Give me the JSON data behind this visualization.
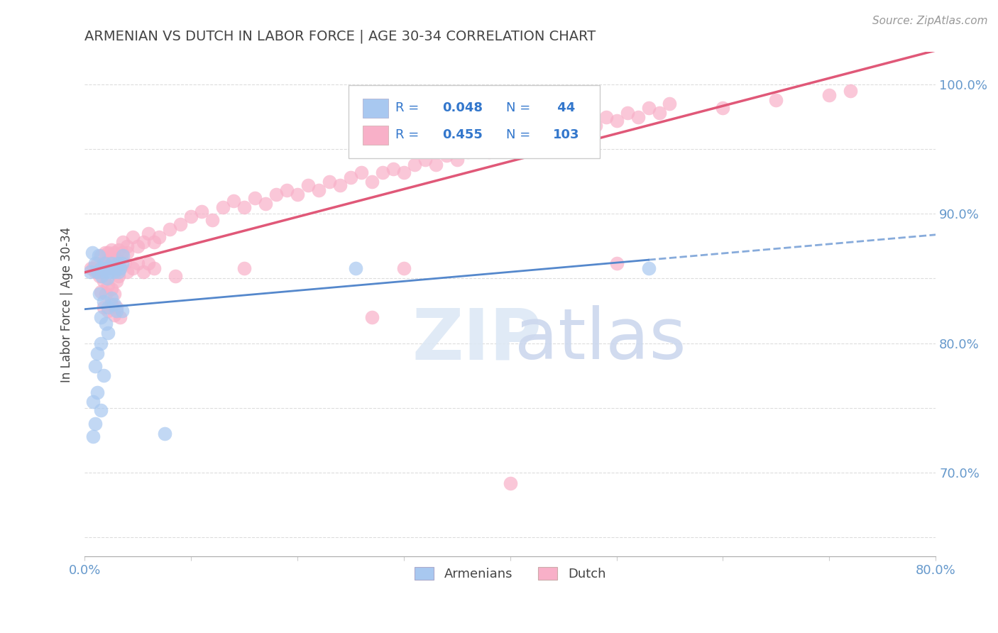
{
  "title": "ARMENIAN VS DUTCH IN LABOR FORCE | AGE 30-34 CORRELATION CHART",
  "source": "Source: ZipAtlas.com",
  "ylabel": "In Labor Force | Age 30-34",
  "xlim": [
    0.0,
    0.8
  ],
  "ylim": [
    0.635,
    1.025
  ],
  "xtick_positions": [
    0.0,
    0.1,
    0.2,
    0.3,
    0.4,
    0.5,
    0.6,
    0.7,
    0.8
  ],
  "xticklabels": [
    "0.0%",
    "",
    "",
    "",
    "",
    "",
    "",
    "",
    "80.0%"
  ],
  "ytick_positions": [
    0.65,
    0.7,
    0.75,
    0.8,
    0.85,
    0.9,
    0.95,
    1.0
  ],
  "ytick_labels_right": [
    "",
    "70.0%",
    "",
    "80.0%",
    "",
    "90.0%",
    "",
    "100.0%"
  ],
  "armenian_color": "#a8c8f0",
  "dutch_color": "#f8b0c8",
  "armenian_line_color": "#5588cc",
  "dutch_line_color": "#e05878",
  "title_color": "#444444",
  "axis_label_color": "#6699cc",
  "legend_r_color": "#3377cc",
  "background_color": "#ffffff",
  "watermark_zip_color": "#e8e8f8",
  "watermark_atlas_color": "#d8e8f8",
  "armenian_points": [
    [
      0.005,
      0.855
    ],
    [
      0.007,
      0.87
    ],
    [
      0.01,
      0.862
    ],
    [
      0.012,
      0.855
    ],
    [
      0.013,
      0.868
    ],
    [
      0.015,
      0.858
    ],
    [
      0.016,
      0.852
    ],
    [
      0.018,
      0.858
    ],
    [
      0.019,
      0.862
    ],
    [
      0.02,
      0.855
    ],
    [
      0.021,
      0.85
    ],
    [
      0.022,
      0.858
    ],
    [
      0.023,
      0.855
    ],
    [
      0.025,
      0.862
    ],
    [
      0.026,
      0.858
    ],
    [
      0.028,
      0.855
    ],
    [
      0.03,
      0.858
    ],
    [
      0.031,
      0.862
    ],
    [
      0.032,
      0.855
    ],
    [
      0.033,
      0.858
    ],
    [
      0.035,
      0.862
    ],
    [
      0.036,
      0.868
    ],
    [
      0.014,
      0.838
    ],
    [
      0.018,
      0.832
    ],
    [
      0.022,
      0.828
    ],
    [
      0.025,
      0.835
    ],
    [
      0.028,
      0.83
    ],
    [
      0.03,
      0.825
    ],
    [
      0.015,
      0.82
    ],
    [
      0.02,
      0.815
    ],
    [
      0.022,
      0.808
    ],
    [
      0.015,
      0.8
    ],
    [
      0.012,
      0.792
    ],
    [
      0.01,
      0.782
    ],
    [
      0.018,
      0.775
    ],
    [
      0.012,
      0.762
    ],
    [
      0.008,
      0.755
    ],
    [
      0.015,
      0.748
    ],
    [
      0.01,
      0.738
    ],
    [
      0.008,
      0.728
    ],
    [
      0.035,
      0.825
    ],
    [
      0.255,
      0.858
    ],
    [
      0.53,
      0.858
    ],
    [
      0.075,
      0.73
    ]
  ],
  "dutch_points": [
    [
      0.006,
      0.858
    ],
    [
      0.008,
      0.858
    ],
    [
      0.01,
      0.855
    ],
    [
      0.012,
      0.862
    ],
    [
      0.014,
      0.852
    ],
    [
      0.015,
      0.868
    ],
    [
      0.016,
      0.855
    ],
    [
      0.018,
      0.862
    ],
    [
      0.019,
      0.87
    ],
    [
      0.02,
      0.858
    ],
    [
      0.021,
      0.862
    ],
    [
      0.022,
      0.87
    ],
    [
      0.023,
      0.858
    ],
    [
      0.024,
      0.865
    ],
    [
      0.025,
      0.872
    ],
    [
      0.026,
      0.862
    ],
    [
      0.027,
      0.858
    ],
    [
      0.028,
      0.87
    ],
    [
      0.03,
      0.865
    ],
    [
      0.031,
      0.862
    ],
    [
      0.032,
      0.872
    ],
    [
      0.033,
      0.858
    ],
    [
      0.035,
      0.87
    ],
    [
      0.036,
      0.878
    ],
    [
      0.038,
      0.862
    ],
    [
      0.04,
      0.87
    ],
    [
      0.015,
      0.84
    ],
    [
      0.018,
      0.848
    ],
    [
      0.02,
      0.838
    ],
    [
      0.022,
      0.845
    ],
    [
      0.025,
      0.842
    ],
    [
      0.028,
      0.838
    ],
    [
      0.03,
      0.848
    ],
    [
      0.032,
      0.852
    ],
    [
      0.018,
      0.828
    ],
    [
      0.022,
      0.825
    ],
    [
      0.025,
      0.83
    ],
    [
      0.028,
      0.822
    ],
    [
      0.03,
      0.828
    ],
    [
      0.033,
      0.82
    ],
    [
      0.04,
      0.875
    ],
    [
      0.045,
      0.882
    ],
    [
      0.05,
      0.875
    ],
    [
      0.055,
      0.878
    ],
    [
      0.06,
      0.885
    ],
    [
      0.065,
      0.878
    ],
    [
      0.07,
      0.882
    ],
    [
      0.04,
      0.855
    ],
    [
      0.045,
      0.858
    ],
    [
      0.05,
      0.862
    ],
    [
      0.055,
      0.855
    ],
    [
      0.06,
      0.862
    ],
    [
      0.065,
      0.858
    ],
    [
      0.08,
      0.888
    ],
    [
      0.09,
      0.892
    ],
    [
      0.1,
      0.898
    ],
    [
      0.11,
      0.902
    ],
    [
      0.12,
      0.895
    ],
    [
      0.13,
      0.905
    ],
    [
      0.14,
      0.91
    ],
    [
      0.15,
      0.905
    ],
    [
      0.16,
      0.912
    ],
    [
      0.17,
      0.908
    ],
    [
      0.18,
      0.915
    ],
    [
      0.19,
      0.918
    ],
    [
      0.2,
      0.915
    ],
    [
      0.21,
      0.922
    ],
    [
      0.22,
      0.918
    ],
    [
      0.23,
      0.925
    ],
    [
      0.24,
      0.922
    ],
    [
      0.25,
      0.928
    ],
    [
      0.26,
      0.932
    ],
    [
      0.27,
      0.925
    ],
    [
      0.28,
      0.932
    ],
    [
      0.29,
      0.935
    ],
    [
      0.3,
      0.932
    ],
    [
      0.31,
      0.938
    ],
    [
      0.32,
      0.942
    ],
    [
      0.33,
      0.938
    ],
    [
      0.34,
      0.945
    ],
    [
      0.35,
      0.942
    ],
    [
      0.36,
      0.948
    ],
    [
      0.37,
      0.952
    ],
    [
      0.38,
      0.948
    ],
    [
      0.39,
      0.955
    ],
    [
      0.4,
      0.952
    ],
    [
      0.41,
      0.958
    ],
    [
      0.42,
      0.962
    ],
    [
      0.43,
      0.958
    ],
    [
      0.44,
      0.965
    ],
    [
      0.45,
      0.962
    ],
    [
      0.46,
      0.968
    ],
    [
      0.47,
      0.972
    ],
    [
      0.48,
      0.968
    ],
    [
      0.49,
      0.975
    ],
    [
      0.5,
      0.972
    ],
    [
      0.51,
      0.978
    ],
    [
      0.52,
      0.975
    ],
    [
      0.53,
      0.982
    ],
    [
      0.54,
      0.978
    ],
    [
      0.55,
      0.985
    ],
    [
      0.6,
      0.982
    ],
    [
      0.65,
      0.988
    ],
    [
      0.7,
      0.992
    ],
    [
      0.72,
      0.995
    ],
    [
      0.085,
      0.852
    ],
    [
      0.15,
      0.858
    ],
    [
      0.3,
      0.858
    ],
    [
      0.27,
      0.82
    ],
    [
      0.5,
      0.862
    ],
    [
      0.4,
      0.692
    ]
  ],
  "arm_trend_solid_xlim": [
    0.0,
    0.53
  ],
  "arm_trend_dash_xlim": [
    0.53,
    0.8
  ]
}
